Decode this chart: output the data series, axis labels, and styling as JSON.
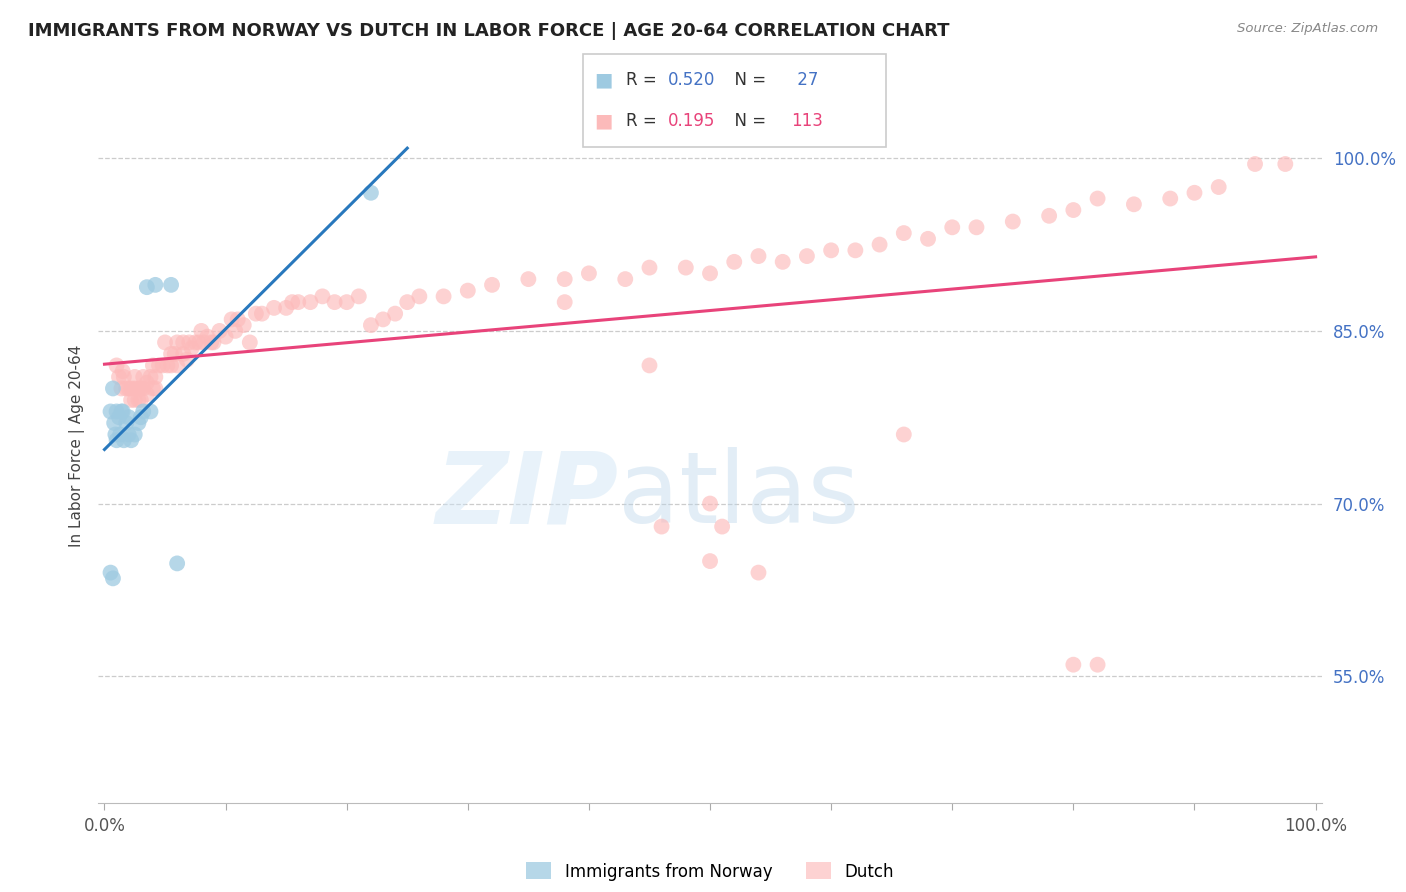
{
  "title": "IMMIGRANTS FROM NORWAY VS DUTCH IN LABOR FORCE | AGE 20-64 CORRELATION CHART",
  "source": "Source: ZipAtlas.com",
  "ylabel": "In Labor Force | Age 20-64",
  "xlim": [
    -0.005,
    1.005
  ],
  "ylim": [
    0.44,
    1.06
  ],
  "xtick_positions": [
    0.0,
    0.1,
    0.2,
    0.3,
    0.4,
    0.5,
    0.6,
    0.7,
    0.8,
    0.9,
    1.0
  ],
  "xticklabels": [
    "0.0%",
    "",
    "",
    "",
    "",
    "",
    "",
    "",
    "",
    "",
    "100.0%"
  ],
  "ytick_positions": [
    0.55,
    0.7,
    0.85,
    1.0
  ],
  "yticklabels": [
    "55.0%",
    "70.0%",
    "85.0%",
    "100.0%"
  ],
  "norway_R": 0.52,
  "norway_N": 27,
  "dutch_R": 0.195,
  "dutch_N": 113,
  "norway_color": "#9ecae1",
  "dutch_color": "#fcbaba",
  "norway_line_color": "#2878bd",
  "dutch_line_color": "#e8437a",
  "norway_R_color": "#4472c4",
  "dutch_R_color": "#e8437a",
  "legend_label_norway": "Immigrants from Norway",
  "legend_label_dutch": "Dutch",
  "norway_x": [
    0.005,
    0.007,
    0.008,
    0.009,
    0.01,
    0.01,
    0.012,
    0.013,
    0.014,
    0.015,
    0.016,
    0.018,
    0.02,
    0.02,
    0.022,
    0.025,
    0.028,
    0.03,
    0.032,
    0.038,
    0.005,
    0.007,
    0.06,
    0.22,
    0.035,
    0.042,
    0.055
  ],
  "norway_y": [
    0.78,
    0.8,
    0.77,
    0.76,
    0.755,
    0.78,
    0.775,
    0.76,
    0.78,
    0.78,
    0.755,
    0.77,
    0.775,
    0.76,
    0.755,
    0.76,
    0.77,
    0.775,
    0.78,
    0.78,
    0.64,
    0.635,
    0.648,
    0.97,
    0.888,
    0.89,
    0.89
  ],
  "dutch_x": [
    0.01,
    0.012,
    0.014,
    0.015,
    0.016,
    0.018,
    0.02,
    0.022,
    0.022,
    0.025,
    0.025,
    0.025,
    0.028,
    0.028,
    0.03,
    0.03,
    0.032,
    0.032,
    0.035,
    0.035,
    0.038,
    0.04,
    0.04,
    0.042,
    0.042,
    0.045,
    0.048,
    0.05,
    0.052,
    0.055,
    0.055,
    0.058,
    0.06,
    0.06,
    0.065,
    0.065,
    0.068,
    0.07,
    0.072,
    0.075,
    0.078,
    0.08,
    0.082,
    0.085,
    0.088,
    0.09,
    0.095,
    0.1,
    0.105,
    0.108,
    0.11,
    0.115,
    0.12,
    0.125,
    0.13,
    0.14,
    0.15,
    0.155,
    0.16,
    0.17,
    0.18,
    0.19,
    0.2,
    0.21,
    0.22,
    0.23,
    0.24,
    0.25,
    0.26,
    0.28,
    0.3,
    0.32,
    0.35,
    0.38,
    0.4,
    0.43,
    0.45,
    0.48,
    0.5,
    0.52,
    0.54,
    0.56,
    0.58,
    0.6,
    0.62,
    0.64,
    0.66,
    0.68,
    0.7,
    0.72,
    0.75,
    0.78,
    0.8,
    0.82,
    0.85,
    0.88,
    0.9,
    0.92,
    0.95,
    0.975,
    0.66,
    0.45,
    0.38,
    0.46,
    0.5,
    0.54,
    0.8,
    0.82,
    0.5,
    0.51
  ],
  "dutch_y": [
    0.82,
    0.81,
    0.8,
    0.815,
    0.81,
    0.8,
    0.8,
    0.8,
    0.79,
    0.8,
    0.79,
    0.81,
    0.79,
    0.8,
    0.8,
    0.79,
    0.8,
    0.81,
    0.805,
    0.795,
    0.81,
    0.8,
    0.82,
    0.8,
    0.81,
    0.82,
    0.82,
    0.84,
    0.82,
    0.82,
    0.83,
    0.83,
    0.84,
    0.82,
    0.83,
    0.84,
    0.825,
    0.84,
    0.835,
    0.84,
    0.84,
    0.85,
    0.84,
    0.845,
    0.84,
    0.84,
    0.85,
    0.845,
    0.86,
    0.85,
    0.86,
    0.855,
    0.84,
    0.865,
    0.865,
    0.87,
    0.87,
    0.875,
    0.875,
    0.875,
    0.88,
    0.875,
    0.875,
    0.88,
    0.855,
    0.86,
    0.865,
    0.875,
    0.88,
    0.88,
    0.885,
    0.89,
    0.895,
    0.895,
    0.9,
    0.895,
    0.905,
    0.905,
    0.9,
    0.91,
    0.915,
    0.91,
    0.915,
    0.92,
    0.92,
    0.925,
    0.935,
    0.93,
    0.94,
    0.94,
    0.945,
    0.95,
    0.955,
    0.965,
    0.96,
    0.965,
    0.97,
    0.975,
    0.995,
    0.995,
    0.76,
    0.82,
    0.875,
    0.68,
    0.7,
    0.64,
    0.56,
    0.56,
    0.65,
    0.68
  ]
}
